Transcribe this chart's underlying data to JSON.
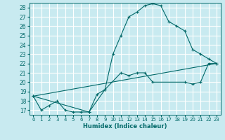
{
  "xlabel": "Humidex (Indice chaleur)",
  "bg_color": "#c8eaf0",
  "grid_color": "#ffffff",
  "line_color": "#006868",
  "xlim": [
    -0.5,
    23.5
  ],
  "ylim": [
    16.5,
    28.5
  ],
  "yticks": [
    17,
    18,
    19,
    20,
    21,
    22,
    23,
    24,
    25,
    26,
    27,
    28
  ],
  "xticks": [
    0,
    1,
    2,
    3,
    4,
    5,
    6,
    7,
    8,
    9,
    10,
    11,
    12,
    13,
    14,
    15,
    16,
    17,
    18,
    19,
    20,
    21,
    22,
    23
  ],
  "line1_x": [
    0,
    1,
    2,
    3,
    4,
    5,
    6,
    7,
    8,
    9,
    10,
    11,
    12,
    13,
    14,
    15,
    16,
    17,
    18,
    19,
    20,
    21,
    22,
    23
  ],
  "line1_y": [
    18.5,
    17.0,
    17.5,
    18.0,
    17.0,
    16.8,
    16.8,
    16.8,
    18.7,
    19.2,
    23.0,
    25.0,
    27.0,
    27.5,
    28.2,
    28.4,
    28.2,
    26.5,
    26.0,
    25.5,
    23.5,
    23.0,
    22.5,
    22.0
  ],
  "line2_x": [
    0,
    23
  ],
  "line2_y": [
    18.5,
    22.0
  ],
  "line3_x": [
    0,
    7,
    9,
    11,
    12,
    13,
    14,
    15,
    19,
    20,
    21,
    22,
    23
  ],
  "line3_y": [
    18.5,
    16.8,
    19.2,
    21.0,
    20.7,
    21.0,
    21.0,
    20.0,
    20.0,
    19.8,
    20.0,
    22.0,
    22.0
  ]
}
